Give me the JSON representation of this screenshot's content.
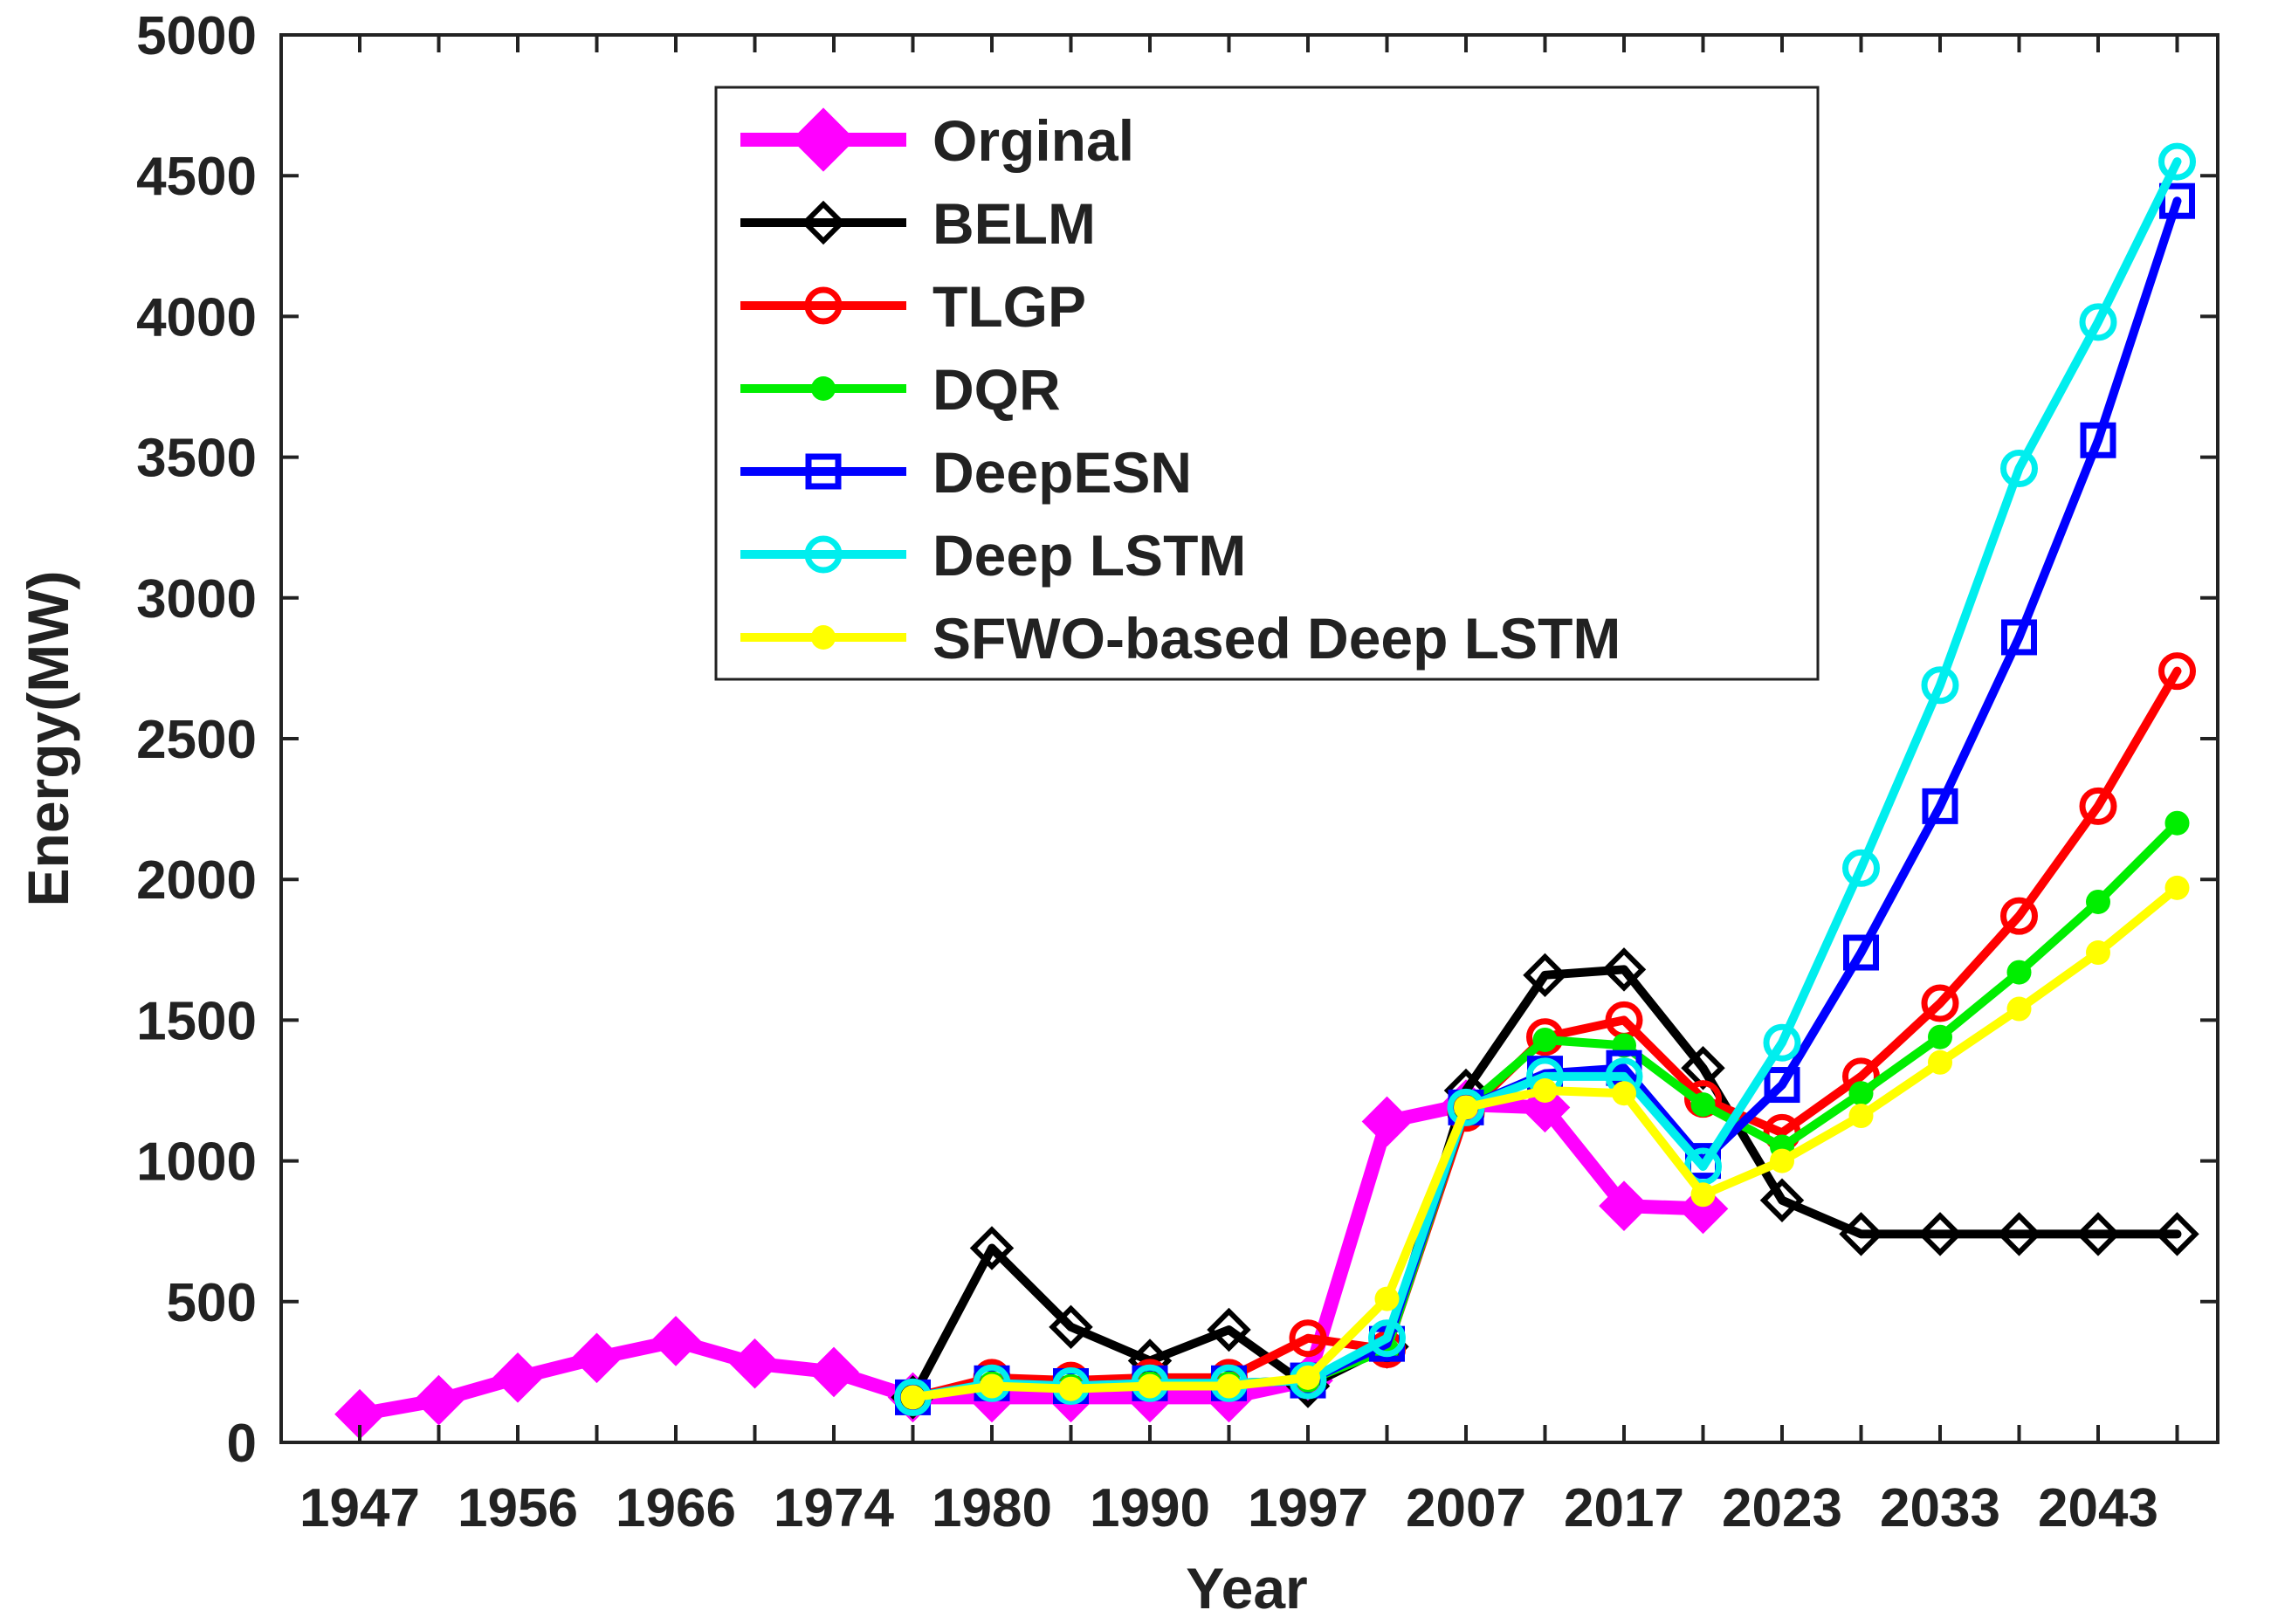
{
  "chart_data": {
    "type": "line",
    "title": "",
    "xlabel": "Year",
    "ylabel": "Energy(MW)",
    "ylim": [
      0,
      5000
    ],
    "yticks": [
      0,
      500,
      1000,
      1500,
      2000,
      2500,
      3000,
      3500,
      4000,
      4500,
      5000
    ],
    "xtick_labels": [
      "1947",
      "1956",
      "1966",
      "1974",
      "1980",
      "1990",
      "1997",
      "2007",
      "2017",
      "2023",
      "2033",
      "2043"
    ],
    "grid": false,
    "legend_position": "top-center",
    "series": [
      {
        "name": "Orginal",
        "color": "#ff00ff",
        "marker": "diamond-filled",
        "start_index": 0,
        "values": [
          100,
          150,
          230,
          300,
          360,
          280,
          250,
          160,
          160,
          160,
          160,
          160,
          220,
          1140,
          1200,
          1190,
          840,
          830
        ]
      },
      {
        "name": "BELM",
        "color": "#000000",
        "marker": "diamond-open",
        "start_index": 7,
        "values": [
          160,
          690,
          410,
          290,
          400,
          200,
          340,
          1250,
          1660,
          1680,
          1330,
          860,
          740,
          740,
          740,
          740,
          740
        ]
      },
      {
        "name": "TLGP",
        "color": "#ff0000",
        "marker": "circle-open",
        "start_index": 7,
        "values": [
          160,
          230,
          220,
          230,
          230,
          370,
          330,
          1170,
          1440,
          1500,
          1220,
          1100,
          1300,
          1560,
          1870,
          2260,
          2740
        ]
      },
      {
        "name": "DQR",
        "color": "#00ee00",
        "marker": "circle-filled",
        "start_index": 7,
        "values": [
          160,
          210,
          200,
          210,
          210,
          220,
          330,
          1190,
          1430,
          1410,
          1200,
          1050,
          1240,
          1440,
          1670,
          1920,
          2200
        ]
      },
      {
        "name": "DeepESN",
        "color": "#0000ff",
        "marker": "square-open",
        "start_index": 7,
        "values": [
          160,
          210,
          200,
          210,
          210,
          220,
          350,
          1190,
          1310,
          1330,
          1000,
          1270,
          1740,
          2260,
          2860,
          3560,
          4410
        ]
      },
      {
        "name": "Deep LSTM",
        "color": "#00eeee",
        "marker": "circle-open",
        "start_index": 7,
        "values": [
          160,
          210,
          200,
          210,
          210,
          220,
          370,
          1190,
          1300,
          1300,
          980,
          1420,
          2040,
          2690,
          3460,
          3980,
          4550
        ]
      },
      {
        "name": "SFWO-based Deep LSTM",
        "color": "#ffff00",
        "marker": "circle-filled",
        "start_index": 7,
        "values": [
          160,
          200,
          190,
          200,
          200,
          230,
          510,
          1190,
          1250,
          1240,
          880,
          1000,
          1160,
          1350,
          1540,
          1740,
          1970
        ]
      }
    ]
  }
}
